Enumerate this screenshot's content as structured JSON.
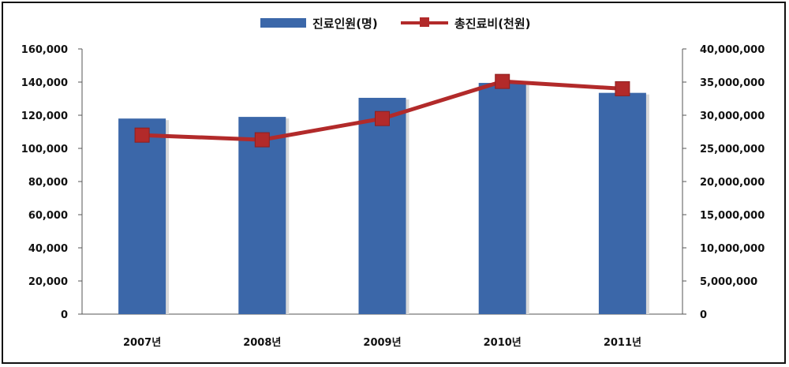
{
  "chart_data": {
    "type": "bar+line",
    "categories": [
      "2007년",
      "2008년",
      "2009년",
      "2010년",
      "2011년"
    ],
    "series": [
      {
        "name": "진료인원(명)",
        "type": "bar",
        "axis": "left",
        "color": "#3b67a9",
        "values": [
          118000,
          119000,
          130500,
          139500,
          133500
        ]
      },
      {
        "name": "총진료비(천원)",
        "type": "line",
        "axis": "right",
        "color": "#b22a2a",
        "values": [
          27000000,
          26300000,
          29500000,
          35100000,
          34000000
        ]
      }
    ],
    "y_left": {
      "min": 0,
      "max": 160000,
      "step": 20000,
      "tick_labels": [
        "0",
        "20,000",
        "40,000",
        "60,000",
        "80,000",
        "100,000",
        "120,000",
        "140,000",
        "160,000"
      ]
    },
    "y_right": {
      "min": 0,
      "max": 40000000,
      "step": 5000000,
      "tick_labels": [
        "0",
        "5,000,000",
        "10,000,000",
        "15,000,000",
        "20,000,000",
        "25,000,000",
        "30,000,000",
        "35,000,000",
        "40,000,000"
      ]
    },
    "grid": false,
    "legend_position": "top-center"
  }
}
